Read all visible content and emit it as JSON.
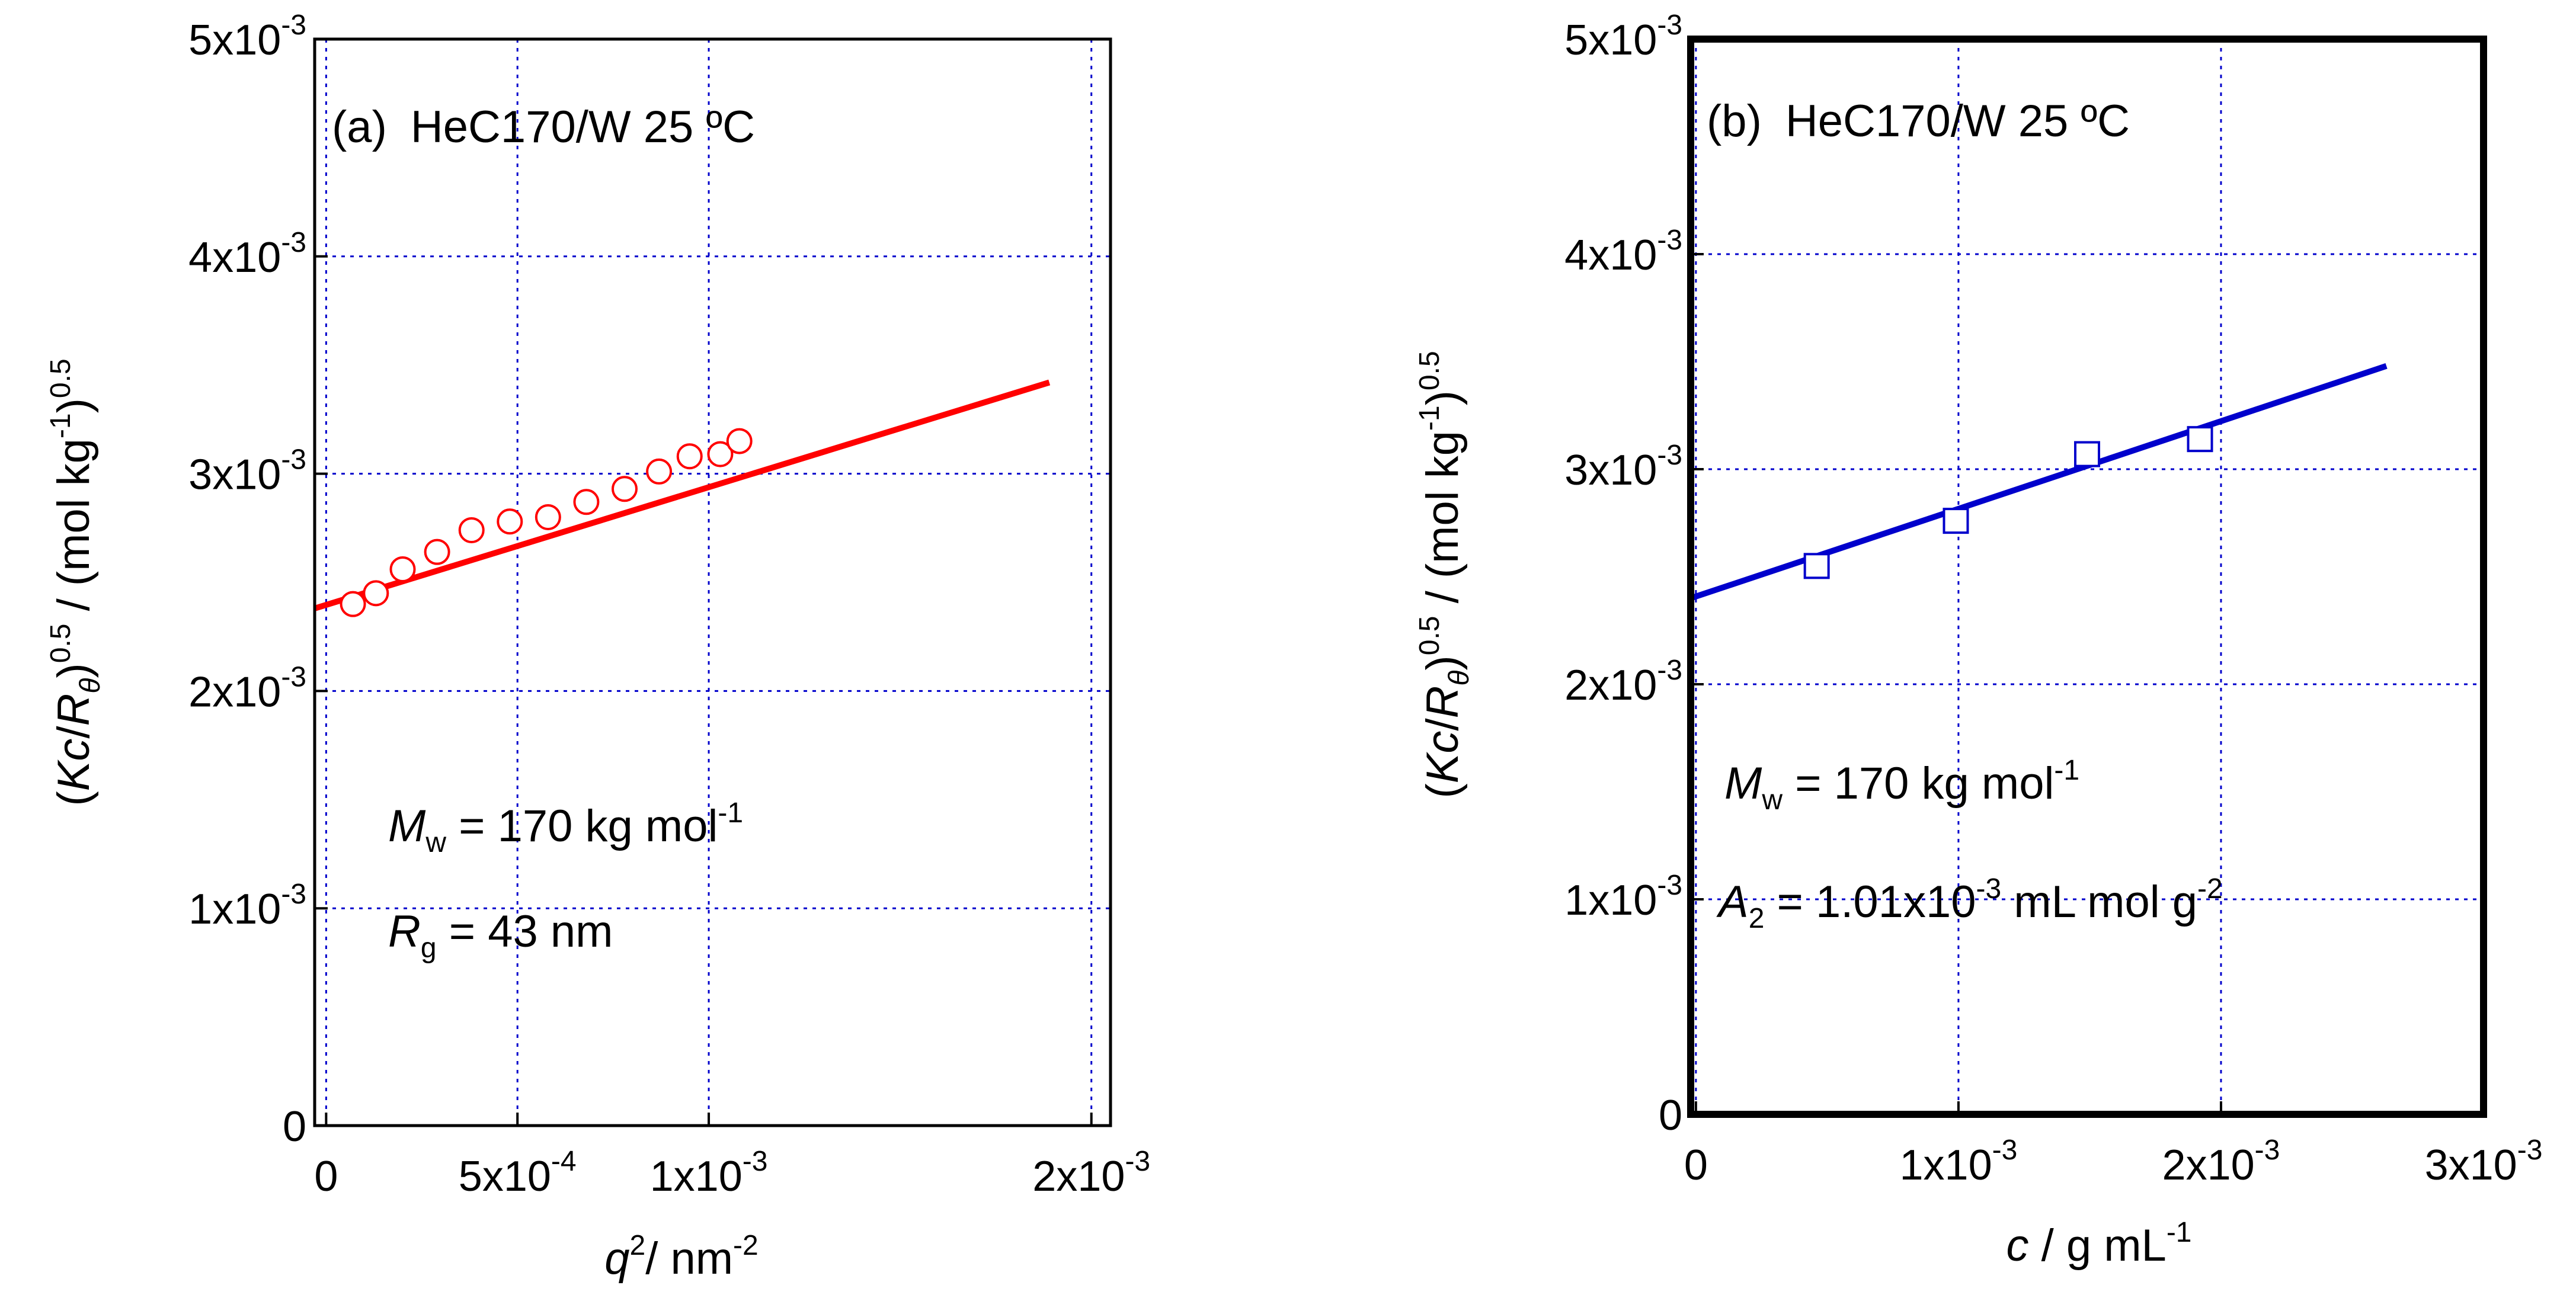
{
  "chart_data": [
    {
      "type": "scatter",
      "panel": "(a)",
      "title": "HeC170/W 25 ºC",
      "xlabel": "q²/ nm⁻²",
      "ylabel": "(Kc/Rθ)^0.5 / (mol kg⁻¹)^0.5",
      "xlim": [
        -3e-05,
        0.00205
      ],
      "ylim": [
        0,
        0.005
      ],
      "x_ticks": [
        {
          "value": 0,
          "label": "0",
          "exp": ""
        },
        {
          "value": 0.0005,
          "label": "5x10",
          "exp": "-4"
        },
        {
          "value": 0.001,
          "label": "1x10",
          "exp": "-3"
        },
        {
          "value": 0.002,
          "label": "2x10",
          "exp": "-3"
        }
      ],
      "y_ticks": [
        {
          "value": 0,
          "label": "0",
          "exp": ""
        },
        {
          "value": 0.001,
          "label": "1x10",
          "exp": "-3"
        },
        {
          "value": 0.002,
          "label": "2x10",
          "exp": "-3"
        },
        {
          "value": 0.003,
          "label": "3x10",
          "exp": "-3"
        },
        {
          "value": 0.004,
          "label": "4x10",
          "exp": "-3"
        },
        {
          "value": 0.005,
          "label": "5x10",
          "exp": "-3"
        }
      ],
      "series": [
        {
          "name": "data",
          "marker": "circle",
          "color": "#ff0000",
          "x": [
            7e-05,
            0.00013,
            0.0002,
            0.00029,
            0.00038,
            0.00048,
            0.00058,
            0.00068,
            0.00078,
            0.00087,
            0.00095,
            0.00103,
            0.00108
          ],
          "y": [
            0.0024,
            0.00245,
            0.00256,
            0.00264,
            0.00274,
            0.00278,
            0.0028,
            0.00287,
            0.00293,
            0.00301,
            0.00308,
            0.00309,
            0.00315
          ]
        },
        {
          "name": "fit",
          "marker": "line",
          "color": "#ff0000",
          "x": [
            -3e-05,
            0.00189
          ],
          "y": [
            0.00238,
            0.00342
          ]
        }
      ],
      "annotations": {
        "mw": {
          "sym": "M",
          "sub": "w",
          "text": " = 170 kg mol",
          "sup": "-1"
        },
        "rg": {
          "sym": "R",
          "sub": "g",
          "text": " = 43 nm"
        }
      }
    },
    {
      "type": "scatter",
      "panel": "(b)",
      "title": "HeC170/W 25 ºC",
      "xlabel": "c / g mL⁻¹",
      "ylabel": "(Kc/Rθ)^0.5 / (mol kg⁻¹)^0.5",
      "xlim": [
        -2e-05,
        0.003
      ],
      "ylim": [
        0,
        0.005
      ],
      "x_ticks": [
        {
          "value": 0,
          "label": "0",
          "exp": ""
        },
        {
          "value": 0.001,
          "label": "1x10",
          "exp": "-3"
        },
        {
          "value": 0.002,
          "label": "2x10",
          "exp": "-3"
        },
        {
          "value": 0.003,
          "label": "3x10",
          "exp": "-3"
        }
      ],
      "y_ticks": [
        {
          "value": 0,
          "label": "0",
          "exp": ""
        },
        {
          "value": 0.001,
          "label": "1x10",
          "exp": "-3"
        },
        {
          "value": 0.002,
          "label": "2x10",
          "exp": "-3"
        },
        {
          "value": 0.003,
          "label": "3x10",
          "exp": "-3"
        },
        {
          "value": 0.004,
          "label": "4x10",
          "exp": "-3"
        },
        {
          "value": 0.005,
          "label": "5x10",
          "exp": "-3"
        }
      ],
      "series": [
        {
          "name": "data",
          "marker": "square",
          "color": "#0000cc",
          "x": [
            0.00046,
            0.00099,
            0.00149,
            0.00192
          ],
          "y": [
            0.00255,
            0.00276,
            0.00307,
            0.00314
          ]
        },
        {
          "name": "fit",
          "marker": "line",
          "color": "#0000cc",
          "x": [
            -2e-05,
            0.00263
          ],
          "y": [
            0.0024,
            0.00348
          ]
        }
      ],
      "annotations": {
        "mw": {
          "sym": "M",
          "sub": "w",
          "text": " = 170 kg mol",
          "sup": "-1"
        },
        "a2": {
          "sym": "A",
          "sub": "2",
          "text": " = 1.01x10",
          "sup": "-3",
          "text2": " mL mol g",
          "sup2": "-2"
        }
      }
    }
  ],
  "colors": {
    "grid": "#0000cc",
    "frame": "#000000"
  }
}
